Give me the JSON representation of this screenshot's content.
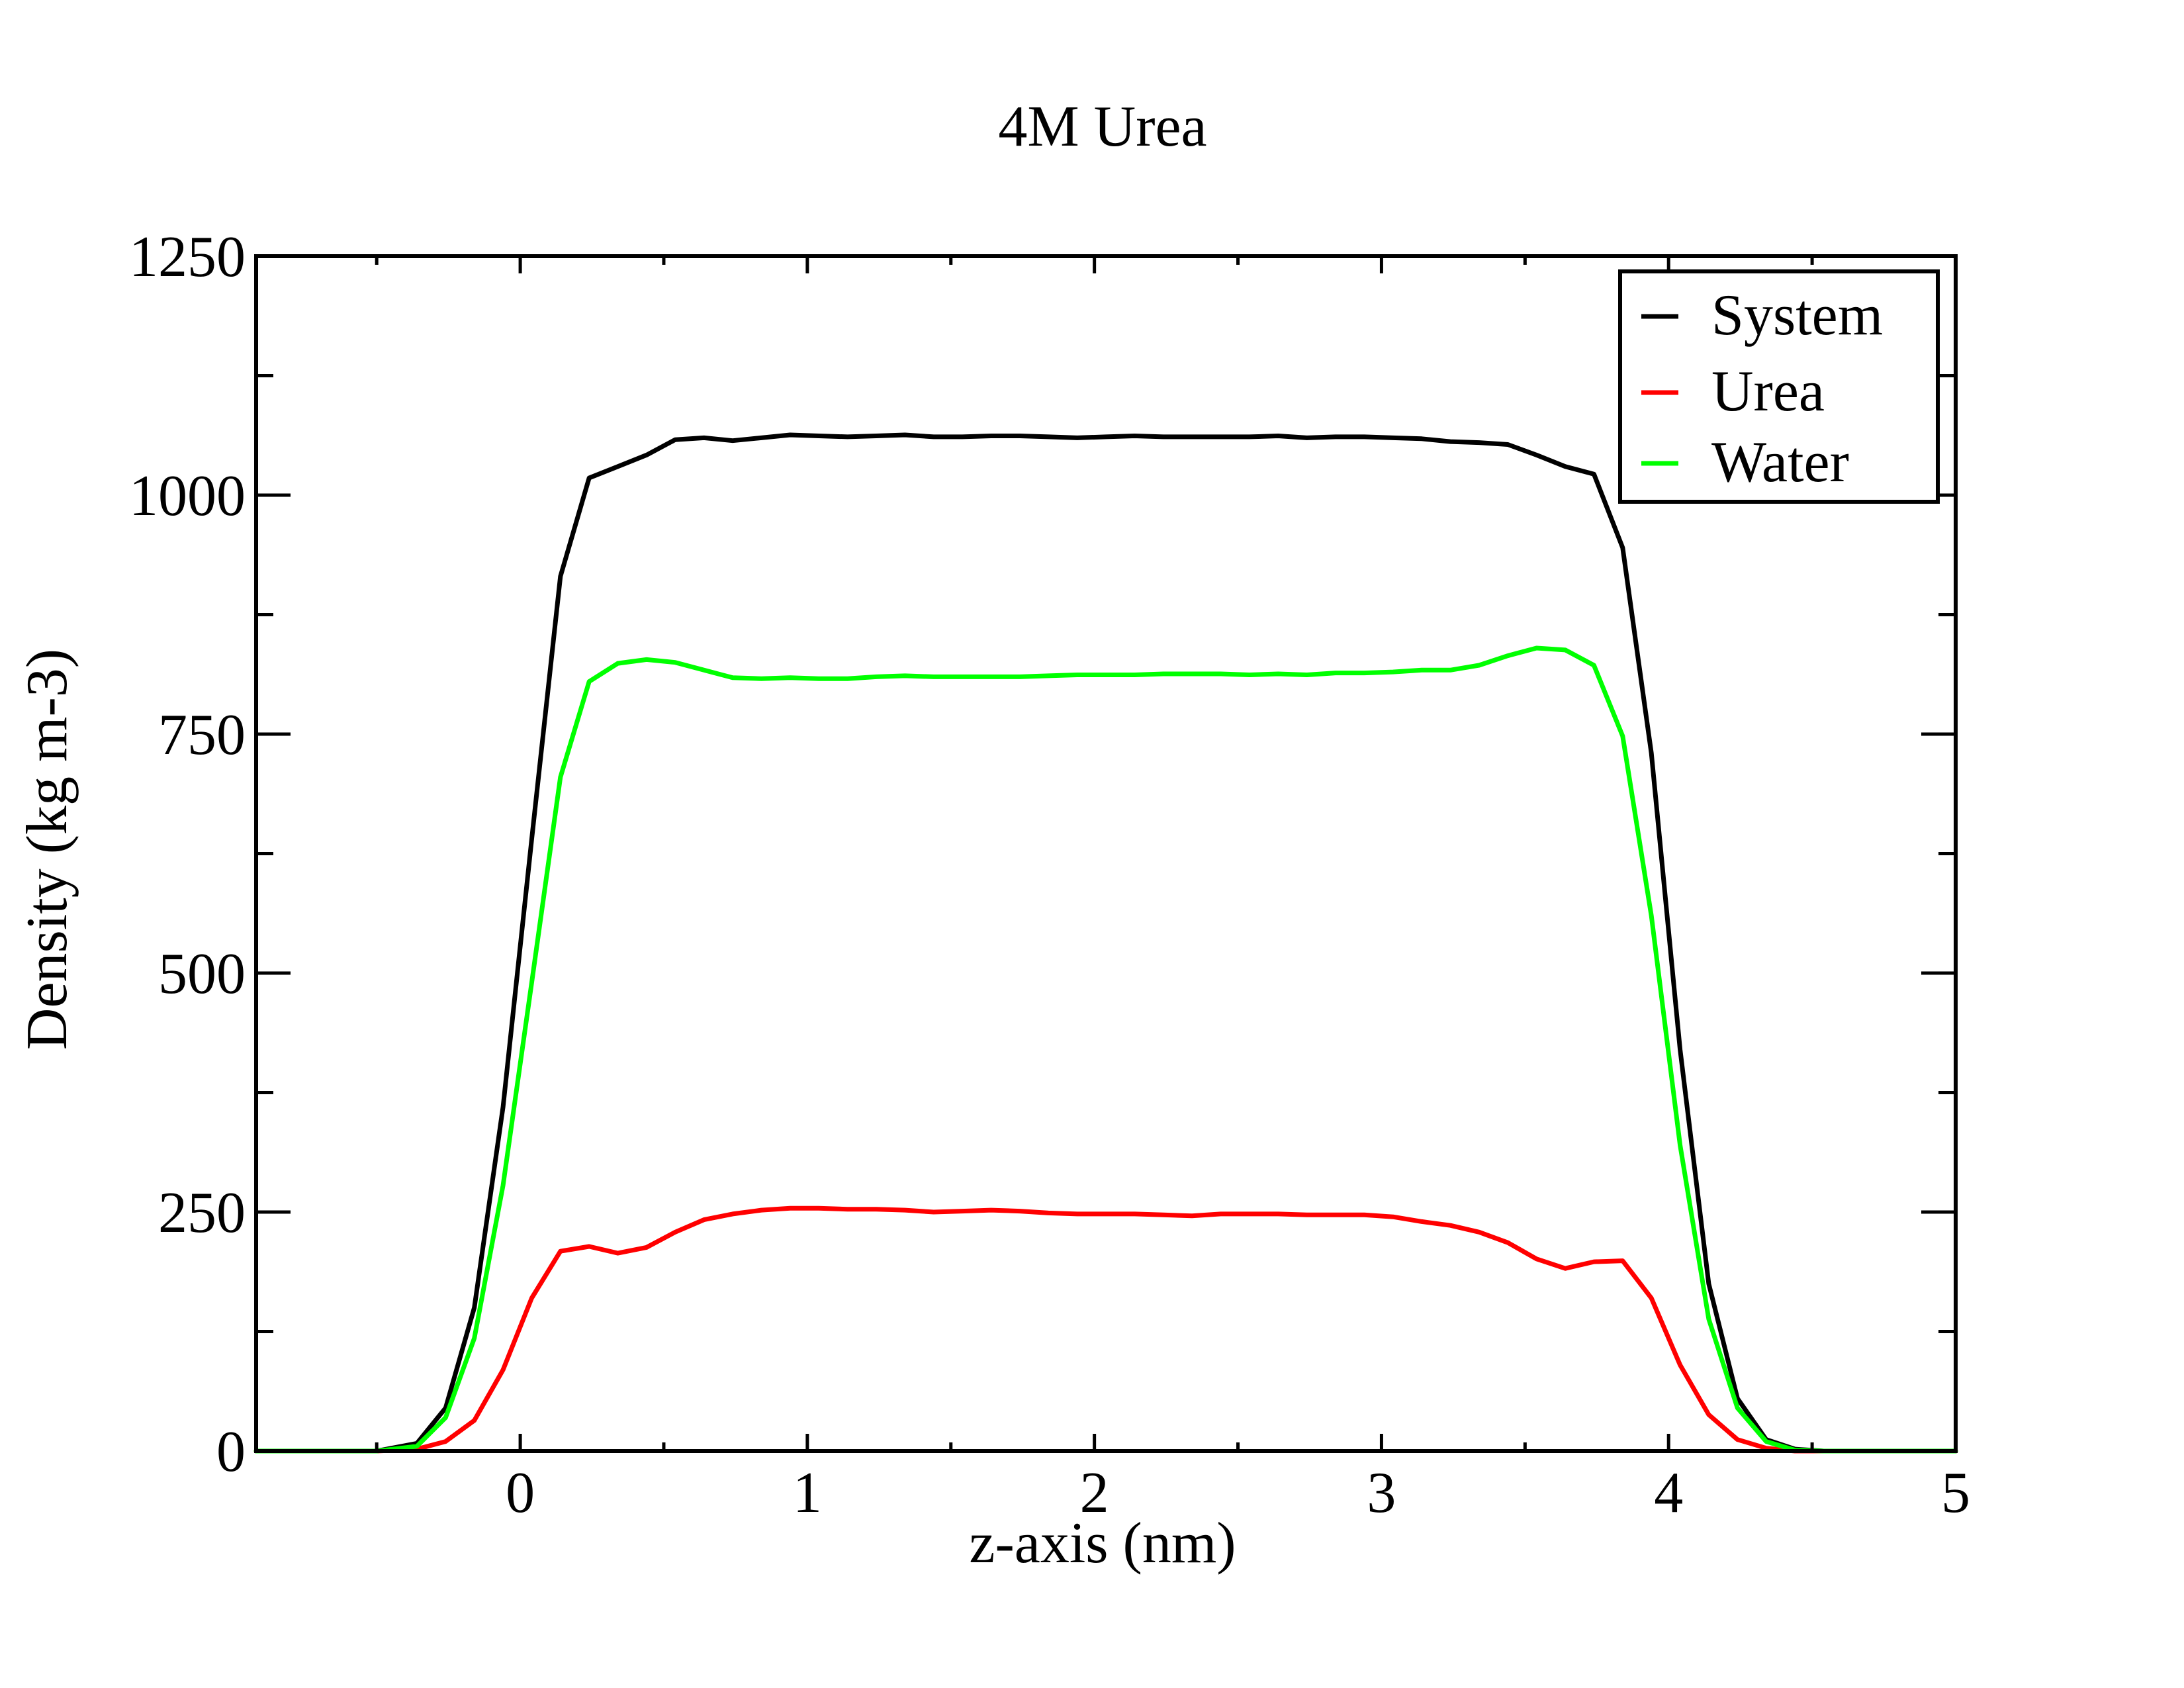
{
  "chart_data": {
    "type": "line",
    "title": "4M Urea",
    "xlabel": "z-axis (nm)",
    "ylabel": "Density (kg m-3)",
    "xlim": [
      -0.92,
      5
    ],
    "ylim": [
      0,
      1250
    ],
    "xticks": [
      0,
      1,
      2,
      3,
      4,
      5
    ],
    "xtick_labels": [
      "0",
      "1",
      "2",
      "3",
      "4",
      "5"
    ],
    "yticks": [
      0,
      250,
      500,
      750,
      1000,
      1250
    ],
    "ytick_labels": [
      "0",
      "250",
      "500",
      "750",
      "1000",
      "1250"
    ],
    "x_minor_step": 0.5,
    "y_minor_step": 125,
    "grid": false,
    "legend_position": "top-right",
    "x": [
      -0.92,
      -0.5,
      -0.36,
      -0.26,
      -0.16,
      -0.06,
      0.04,
      0.14,
      0.24,
      0.34,
      0.44,
      0.54,
      0.64,
      0.74,
      0.84,
      0.94,
      1.04,
      1.14,
      1.24,
      1.34,
      1.44,
      1.54,
      1.64,
      1.74,
      1.84,
      1.94,
      2.04,
      2.14,
      2.24,
      2.34,
      2.44,
      2.54,
      2.64,
      2.74,
      2.84,
      2.94,
      3.04,
      3.14,
      3.24,
      3.34,
      3.44,
      3.54,
      3.64,
      3.74,
      3.84,
      3.94,
      4.04,
      4.14,
      4.24,
      4.34,
      4.44,
      4.54,
      5.0
    ],
    "series": [
      {
        "name": "System",
        "color": "#000000",
        "values": [
          0,
          0,
          8,
          45,
          150,
          360,
          640,
          915,
          1018,
          1030,
          1042,
          1058,
          1060,
          1057,
          1060,
          1063,
          1062,
          1061,
          1062,
          1063,
          1061,
          1061,
          1062,
          1062,
          1061,
          1060,
          1061,
          1062,
          1061,
          1061,
          1061,
          1061,
          1062,
          1060,
          1061,
          1061,
          1060,
          1059,
          1056,
          1055,
          1053,
          1042,
          1030,
          1022,
          945,
          730,
          420,
          175,
          55,
          12,
          2,
          0,
          0
        ]
      },
      {
        "name": "Urea",
        "color": "#ff0000",
        "values": [
          0,
          0,
          2,
          10,
          32,
          85,
          160,
          209,
          214,
          207,
          213,
          229,
          242,
          248,
          252,
          254,
          254,
          253,
          253,
          252,
          250,
          251,
          252,
          251,
          249,
          248,
          248,
          248,
          247,
          246,
          248,
          248,
          248,
          247,
          247,
          247,
          245,
          240,
          236,
          229,
          218,
          201,
          191,
          198,
          199,
          160,
          90,
          38,
          12,
          3,
          0,
          0,
          0
        ]
      },
      {
        "name": "Water",
        "color": "#00ff00",
        "values": [
          0,
          0,
          5,
          35,
          118,
          278,
          490,
          705,
          805,
          824,
          828,
          825,
          817,
          809,
          808,
          809,
          808,
          808,
          810,
          811,
          810,
          810,
          810,
          810,
          811,
          812,
          812,
          812,
          813,
          813,
          813,
          812,
          813,
          812,
          814,
          814,
          815,
          817,
          817,
          822,
          832,
          840,
          838,
          822,
          748,
          560,
          320,
          138,
          45,
          10,
          1,
          0,
          0
        ]
      }
    ]
  }
}
